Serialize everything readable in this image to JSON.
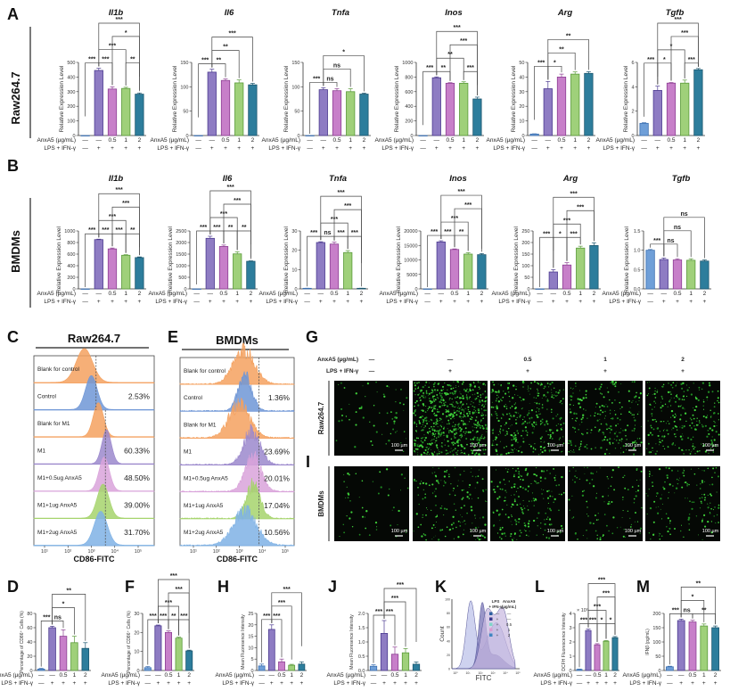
{
  "panel_letters": {
    "A": "A",
    "B": "B",
    "C": "C",
    "D": "D",
    "E": "E",
    "F": "F",
    "G": "G",
    "H": "H",
    "I": "I",
    "J": "J",
    "K": "K",
    "L": "L",
    "M": "M"
  },
  "row_labels": {
    "raw": "Raw264.7",
    "bmdm": "BMDMs"
  },
  "groups": {
    "anxa5_label": "AnxA5 (µg/mL)",
    "lps_label": "LPS + IFN-γ",
    "anxa5": [
      "—",
      "—",
      "0.5",
      "1",
      "2"
    ],
    "lps": [
      "—",
      "+",
      "+",
      "+",
      "+"
    ]
  },
  "colors": {
    "bars": [
      "#6f9fd8",
      "#8e7cc3",
      "#c77fc9",
      "#9fd07a",
      "#2d7d9c"
    ],
    "bar_edges": [
      "#3b6fb0",
      "#4b3a8f",
      "#8d3f93",
      "#5a9a3a",
      "#1b566e"
    ]
  },
  "chart_data": [
    {
      "panel": "A",
      "type": "bar",
      "title": "Il1b",
      "ylabel": "Relative Expression Level",
      "ylim": [
        0,
        500
      ],
      "yticks": [
        "0",
        "100",
        "200",
        "300",
        "400",
        "500"
      ],
      "values": [
        0,
        445,
        318,
        322,
        283
      ],
      "errors": [
        0,
        15,
        15,
        8,
        8
      ],
      "significance": [
        [
          0,
          1,
          "***"
        ],
        [
          1,
          3,
          "***"
        ],
        [
          3,
          4,
          "**"
        ],
        [
          1,
          2,
          "***"
        ],
        [
          2,
          4,
          "*"
        ],
        [
          1,
          4,
          "***"
        ]
      ]
    },
    {
      "panel": "A",
      "type": "bar",
      "title": "Il6",
      "ylabel": "Relative Expression Level",
      "ylim": [
        0,
        150
      ],
      "yticks": [
        "0",
        "50",
        "100",
        "150"
      ],
      "values": [
        0,
        130,
        113,
        108,
        104
      ],
      "errors": [
        0,
        6,
        3,
        6,
        3
      ],
      "significance": [
        [
          0,
          1,
          "***"
        ],
        [
          1,
          3,
          "**"
        ],
        [
          1,
          2,
          "**"
        ],
        [
          1,
          4,
          "***"
        ]
      ]
    },
    {
      "panel": "A",
      "type": "bar",
      "title": "Tnfa",
      "ylabel": "Relative Expression Level",
      "ylim": [
        0,
        150
      ],
      "yticks": [
        "0",
        "50",
        "100",
        "150"
      ],
      "values": [
        0,
        94,
        92,
        90,
        85
      ],
      "errors": [
        0,
        4,
        4,
        6,
        2
      ],
      "significance": [
        [
          0,
          1,
          "***"
        ],
        [
          1,
          3,
          "ns"
        ],
        [
          1,
          2,
          "ns"
        ],
        [
          1,
          4,
          "*"
        ]
      ]
    },
    {
      "panel": "A",
      "type": "bar",
      "title": "Inos",
      "ylabel": "Relative Expression Level",
      "ylim": [
        0,
        1000
      ],
      "yticks": [
        "0",
        "200",
        "400",
        "600",
        "800",
        "1000"
      ],
      "values": [
        0,
        790,
        715,
        715,
        500
      ],
      "errors": [
        0,
        12,
        8,
        20,
        25
      ],
      "significance": [
        [
          0,
          1,
          "***"
        ],
        [
          1,
          3,
          "**"
        ],
        [
          3,
          4,
          "***"
        ],
        [
          1,
          2,
          "**"
        ],
        [
          2,
          4,
          "***"
        ],
        [
          1,
          4,
          "***"
        ]
      ]
    },
    {
      "panel": "A",
      "type": "bar",
      "title": "Arg",
      "ylabel": "Relative Expression Level",
      "ylim": [
        0,
        50
      ],
      "yticks": [
        "0",
        "10",
        "20",
        "30",
        "40",
        "50"
      ],
      "values": [
        1,
        32,
        40,
        42,
        42.5
      ],
      "errors": [
        0.2,
        5,
        2,
        1.5,
        1.2
      ],
      "significance": [
        [
          0,
          1,
          "***"
        ],
        [
          1,
          2,
          "*"
        ],
        [
          1,
          3,
          "**"
        ],
        [
          1,
          4,
          "**"
        ]
      ]
    },
    {
      "panel": "A",
      "type": "bar",
      "title": "Tgfb",
      "ylabel": "Relative Expression Level",
      "ylim": [
        0,
        6
      ],
      "yticks": [
        "0",
        "2",
        "4",
        "6"
      ],
      "values": [
        1,
        3.7,
        4.3,
        4.3,
        5.4
      ],
      "errors": [
        0.05,
        0.35,
        0.05,
        0.25,
        0.1
      ],
      "significance": [
        [
          0,
          1,
          "***"
        ],
        [
          1,
          2,
          "*"
        ],
        [
          3,
          4,
          "***"
        ],
        [
          1,
          3,
          "*"
        ],
        [
          2,
          4,
          "***"
        ],
        [
          1,
          4,
          "***"
        ]
      ]
    },
    {
      "panel": "B",
      "type": "bar",
      "title": "Il1b",
      "ylabel": "Relative Expression Level",
      "ylim": [
        0,
        1000
      ],
      "yticks": [
        "0",
        "200",
        "400",
        "600",
        "800",
        "1000"
      ],
      "values": [
        0,
        850,
        690,
        580,
        540
      ],
      "errors": [
        0,
        8,
        15,
        10,
        12
      ],
      "significance": [
        [
          0,
          1,
          "***"
        ],
        [
          2,
          3,
          "***"
        ],
        [
          3,
          4,
          "**"
        ],
        [
          1,
          2,
          "***"
        ],
        [
          2,
          4,
          "***"
        ],
        [
          1,
          3,
          "***"
        ],
        [
          1,
          4,
          "***"
        ]
      ]
    },
    {
      "panel": "B",
      "type": "bar",
      "title": "Il6",
      "ylabel": "Relative Expression Level",
      "ylim": [
        0,
        2500
      ],
      "yticks": [
        "0",
        "500",
        "1000",
        "1500",
        "2000",
        "2500"
      ],
      "values": [
        0,
        2180,
        1830,
        1510,
        1190
      ],
      "errors": [
        0,
        90,
        60,
        90,
        20
      ],
      "significance": [
        [
          0,
          1,
          "***"
        ],
        [
          2,
          3,
          "**"
        ],
        [
          3,
          4,
          "**"
        ],
        [
          1,
          2,
          "***"
        ],
        [
          2,
          4,
          "***"
        ],
        [
          1,
          3,
          "***"
        ],
        [
          1,
          4,
          "***"
        ]
      ]
    },
    {
      "panel": "B",
      "type": "bar",
      "title": "Tnfa",
      "ylabel": "Relative Expression Level",
      "ylim": [
        0,
        30
      ],
      "yticks": [
        "0",
        "10",
        "20",
        "30"
      ],
      "values": [
        0.3,
        24,
        23.2,
        18.8,
        0.3
      ],
      "errors": [
        0.05,
        0.4,
        1,
        1,
        0.05
      ],
      "significance": [
        [
          0,
          1,
          "***"
        ],
        [
          2,
          3,
          "***"
        ],
        [
          1,
          2,
          "ns"
        ],
        [
          3,
          4,
          "***"
        ],
        [
          1,
          3,
          "***"
        ],
        [
          2,
          4,
          "***"
        ],
        [
          1,
          4,
          "***"
        ]
      ]
    },
    {
      "panel": "B",
      "type": "bar",
      "title": "Inos",
      "ylabel": "Relative Expression Level",
      "ylim": [
        0,
        20000
      ],
      "yticks": [
        "0",
        "5000",
        "10000",
        "15000",
        "20000"
      ],
      "values": [
        0,
        16200,
        13600,
        12000,
        11800
      ],
      "errors": [
        0,
        400,
        200,
        500,
        400
      ],
      "significance": [
        [
          0,
          1,
          "***"
        ],
        [
          2,
          3,
          "**"
        ],
        [
          1,
          2,
          "***"
        ],
        [
          2,
          4,
          "***"
        ],
        [
          1,
          3,
          "***"
        ],
        [
          1,
          4,
          "***"
        ]
      ]
    },
    {
      "panel": "B",
      "type": "bar",
      "title": "Arg",
      "ylabel": "Relative Expression Level",
      "ylim": [
        0,
        250
      ],
      "yticks": [
        "0",
        "50",
        "100",
        "150",
        "200",
        "250"
      ],
      "values": [
        0,
        73,
        103,
        176,
        187
      ],
      "errors": [
        0,
        10,
        10,
        8,
        12
      ],
      "significance": [
        [
          0,
          1,
          "***"
        ],
        [
          1,
          2,
          "*"
        ],
        [
          2,
          4,
          "***"
        ],
        [
          2,
          3,
          "***"
        ],
        [
          1,
          3,
          "***"
        ],
        [
          1,
          4,
          "***"
        ]
      ]
    },
    {
      "panel": "B",
      "type": "bar",
      "title": "Tgfb",
      "ylabel": "Relative Expression Level",
      "ylim": [
        0,
        1.5
      ],
      "yticks": [
        "0.0",
        "0.5",
        "1.0",
        "1.5"
      ],
      "values": [
        1.0,
        0.76,
        0.75,
        0.74,
        0.72
      ],
      "errors": [
        0.02,
        0.04,
        0.03,
        0.04,
        0.03
      ],
      "significance": [
        [
          0,
          1,
          "***"
        ],
        [
          1,
          3,
          "ns"
        ],
        [
          1,
          2,
          "ns"
        ],
        [
          1,
          4,
          "ns"
        ]
      ]
    },
    {
      "panel": "D",
      "type": "bar",
      "title": "",
      "ylabel": "Percentage of CD86⁺ Cells (%)",
      "ylim": [
        0,
        80
      ],
      "yticks": [
        "0",
        "20",
        "40",
        "60",
        "80"
      ],
      "values": [
        2,
        60,
        48,
        39,
        31
      ],
      "errors": [
        1,
        2,
        9,
        9,
        8
      ],
      "significance": [
        [
          0,
          1,
          "***"
        ],
        [
          1,
          3,
          "*"
        ],
        [
          1,
          2,
          "ns"
        ],
        [
          1,
          4,
          "**"
        ]
      ]
    },
    {
      "panel": "F",
      "type": "bar",
      "title": "",
      "ylabel": "Percentage of CD86⁺ Cells (%)",
      "ylim": [
        0,
        30
      ],
      "yticks": [
        "0",
        "10",
        "20",
        "30"
      ],
      "values": [
        1.5,
        23.5,
        20,
        17,
        10.3
      ],
      "errors": [
        0.6,
        0.4,
        0.8,
        0.5,
        0.4
      ],
      "significance": [
        [
          0,
          1,
          "***"
        ],
        [
          2,
          3,
          "**"
        ],
        [
          3,
          4,
          "***"
        ],
        [
          1,
          2,
          "***"
        ],
        [
          2,
          4,
          "***"
        ],
        [
          1,
          3,
          "***"
        ],
        [
          1,
          4,
          "***"
        ]
      ]
    },
    {
      "panel": "H",
      "type": "bar",
      "title": "",
      "ylabel": "Mean Fluoresence Intensity",
      "ylim": [
        0,
        25
      ],
      "yticks": [
        "0",
        "5",
        "10",
        "15",
        "20",
        "25"
      ],
      "values": [
        2,
        18,
        3.8,
        2.3,
        2.8
      ],
      "errors": [
        0.8,
        2,
        1.2,
        0.4,
        1
      ],
      "significance": [
        [
          0,
          1,
          "***"
        ],
        [
          1,
          3,
          "***"
        ],
        [
          1,
          2,
          "***"
        ],
        [
          1,
          4,
          "***"
        ]
      ]
    },
    {
      "panel": "J",
      "type": "bar",
      "title": "",
      "ylabel": "Mean Fluoresence Intensity",
      "ylim": [
        0,
        2
      ],
      "yticks": [
        "0.0",
        "0.5",
        "1.0",
        "1.5",
        "2.0"
      ],
      "values": [
        0.15,
        1.3,
        0.57,
        0.62,
        0.22
      ],
      "errors": [
        0.05,
        0.45,
        0.25,
        0.15,
        0.08
      ],
      "significance": [
        [
          0,
          1,
          "***"
        ],
        [
          1,
          3,
          "***"
        ],
        [
          1,
          2,
          "***"
        ],
        [
          1,
          4,
          "***"
        ]
      ]
    },
    {
      "panel": "L",
      "type": "bar",
      "title": "",
      "ylabel": "DCFH Fluorescence Intensity",
      "yunit": "× 10⁵",
      "ylim": [
        0,
        4
      ],
      "yticks": [
        "0",
        "1",
        "2",
        "3",
        "4"
      ],
      "values": [
        0.07,
        2.8,
        1.8,
        2.05,
        2.3
      ],
      "errors": [
        0.03,
        0.1,
        0.08,
        0.05,
        0.08
      ],
      "significance": [
        [
          0,
          1,
          "***"
        ],
        [
          2,
          3,
          "*"
        ],
        [
          3,
          4,
          "*"
        ],
        [
          1,
          2,
          "***"
        ],
        [
          2,
          4,
          "***"
        ],
        [
          1,
          3,
          "***"
        ],
        [
          1,
          4,
          "***"
        ]
      ]
    },
    {
      "panel": "M",
      "type": "bar",
      "title": "",
      "ylabel": "IFNβ (pg/mL)",
      "ylim": [
        0,
        200
      ],
      "yticks": [
        "0",
        "50",
        "100",
        "150",
        "200"
      ],
      "values": [
        13,
        175,
        170,
        156,
        150
      ],
      "errors": [
        2,
        5,
        6,
        7,
        6
      ],
      "significance": [
        [
          0,
          1,
          "***"
        ],
        [
          1,
          3,
          "*"
        ],
        [
          1,
          2,
          "ns"
        ],
        [
          2,
          4,
          "**"
        ],
        [
          1,
          4,
          "**"
        ]
      ]
    }
  ],
  "flow": {
    "C": {
      "title": "Raw264.7",
      "xlabel": "CD86-FITC",
      "xticks": [
        "10¹",
        "10²",
        "10³",
        "10⁴",
        "10⁵"
      ],
      "rows": [
        {
          "label": "Blank for control",
          "percent": "",
          "color": "#f4a15f",
          "peak": 2.7,
          "width": 0.35
        },
        {
          "label": "Control",
          "percent": "2.53%",
          "color": "#6f96d6",
          "peak": 3.0,
          "width": 0.25
        },
        {
          "label": "Blank for M1",
          "percent": "",
          "color": "#f4a15f",
          "peak": 3.3,
          "width": 0.22
        },
        {
          "label": "M1",
          "percent": "60.33%",
          "color": "#9b88cc",
          "peak": 3.65,
          "width": 0.2
        },
        {
          "label": "M1+0.5ug AnxA5",
          "percent": "48.50%",
          "color": "#d9a3da",
          "peak": 3.55,
          "width": 0.22
        },
        {
          "label": "M1+1ug AnxA5",
          "percent": "39.00%",
          "color": "#a6d46c",
          "peak": 3.5,
          "width": 0.25
        },
        {
          "label": "M1+2ug AnxA5",
          "percent": "31.70%",
          "color": "#7fb2e5",
          "peak": 3.4,
          "width": 0.28
        }
      ],
      "gates": [
        3.2,
        3.6
      ]
    },
    "E": {
      "title": "BMDMs",
      "xlabel": "CD86-FITC",
      "xticks": [
        "10¹",
        "10²",
        "10³",
        "10⁴",
        "10⁵"
      ],
      "rows": [
        {
          "label": "Blank for control",
          "percent": "",
          "color": "#f4a15f",
          "peak": 3.2,
          "width": 0.45
        },
        {
          "label": "Control",
          "percent": "1.36%",
          "color": "#6f96d6",
          "peak": 3.25,
          "width": 0.3
        },
        {
          "label": "Blank for M1",
          "percent": "",
          "color": "#f4a15f",
          "peak": 3.0,
          "width": 0.45
        },
        {
          "label": "M1",
          "percent": "23.69%",
          "color": "#9b88cc",
          "peak": 3.55,
          "width": 0.35
        },
        {
          "label": "M1+0.5ug AnxA5",
          "percent": "20.01%",
          "color": "#d9a3da",
          "peak": 3.6,
          "width": 0.35
        },
        {
          "label": "M1+1ug AnxA5",
          "percent": "17.04%",
          "color": "#a6d46c",
          "peak": 3.6,
          "width": 0.3
        },
        {
          "label": "M1+2ug AnxA5",
          "percent": "10.56%",
          "color": "#7fb2e5",
          "peak": 3.25,
          "width": 0.5
        }
      ],
      "gates": [
        3.85,
        3.85
      ]
    }
  },
  "K": {
    "ylabel": "Count",
    "xlabel": "FITC",
    "yticks": [
      "0",
      "20",
      "40",
      "60",
      "80",
      "100"
    ],
    "xticks": [
      "10⁰",
      "10¹",
      "10²",
      "10³",
      "10⁴",
      "10⁵"
    ],
    "legend_headers": [
      "LPS",
      "+ IFN-γ",
      "AnxA5",
      "(µg/mL)"
    ],
    "legend_rows": [
      {
        "lps": "—",
        "anxa5": "—",
        "color": "#2d5fa0"
      },
      {
        "lps": "+",
        "anxa5": "—",
        "color": "#3b3a8f"
      },
      {
        "lps": "+",
        "anxa5": "0.5",
        "color": "#7fd6c9"
      },
      {
        "lps": "+",
        "anxa5": "1",
        "color": "#d99ad0"
      },
      {
        "lps": "+",
        "anxa5": "2",
        "color": "#3f86c2"
      }
    ]
  },
  "G": {
    "scale_bar": "100 µm",
    "relative_density": {
      "raw": [
        0.05,
        1.0,
        0.45,
        0.3,
        0.35
      ],
      "bmdm": [
        0.03,
        0.2,
        0.28,
        0.12,
        0.18
      ]
    }
  }
}
